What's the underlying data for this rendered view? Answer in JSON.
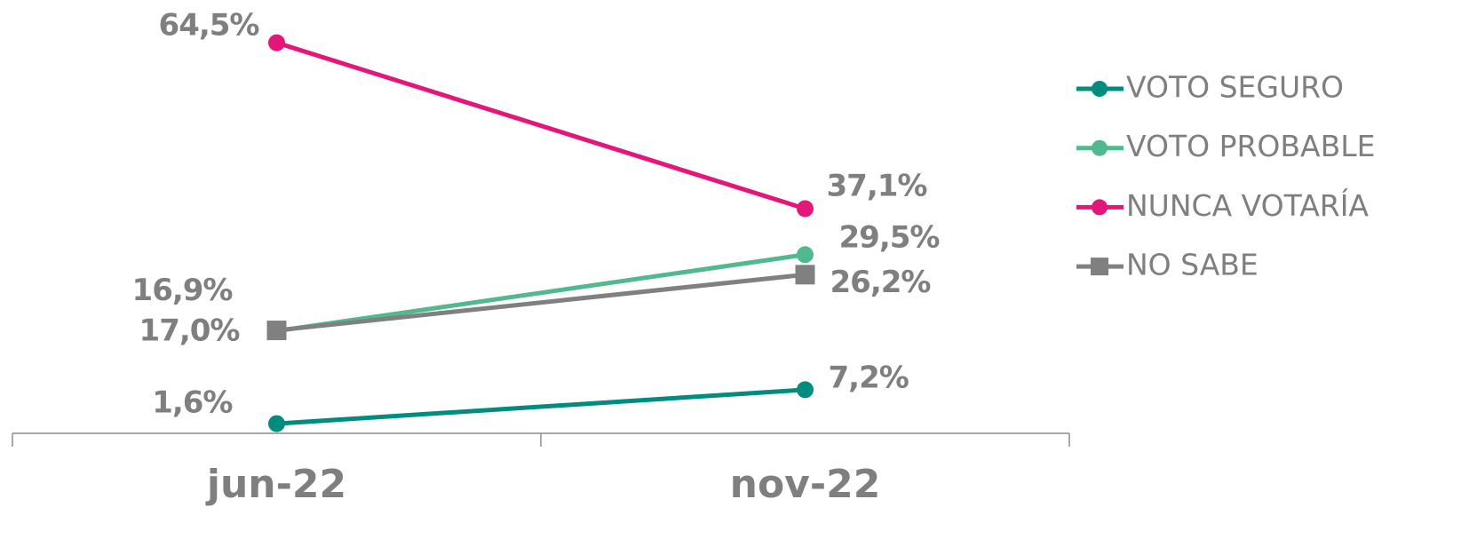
{
  "chart_data": {
    "type": "line",
    "categories": [
      "jun-22",
      "nov-22"
    ],
    "series": [
      {
        "name": "VOTO SEGURO",
        "color": "#008c7e",
        "marker": "circle",
        "values": [
          1.6,
          7.2
        ],
        "value_labels": [
          "1,6%",
          "7,2%"
        ]
      },
      {
        "name": "VOTO PROBABLE",
        "color": "#52b98f",
        "marker": "circle",
        "values": [
          16.9,
          29.5
        ],
        "value_labels": [
          "16,9%",
          "29,5%"
        ]
      },
      {
        "name": "NUNCA VOTARÍA",
        "color": "#e4167a",
        "marker": "circle",
        "values": [
          64.5,
          37.1
        ],
        "value_labels": [
          "64,5%",
          "37,1%"
        ]
      },
      {
        "name": "NO SABE",
        "color": "#808080",
        "marker": "square",
        "values": [
          17.0,
          26.2
        ],
        "value_labels": [
          "17,0%",
          "26,2%"
        ]
      }
    ],
    "ylim": [
      0,
      70
    ],
    "legend": "right"
  }
}
